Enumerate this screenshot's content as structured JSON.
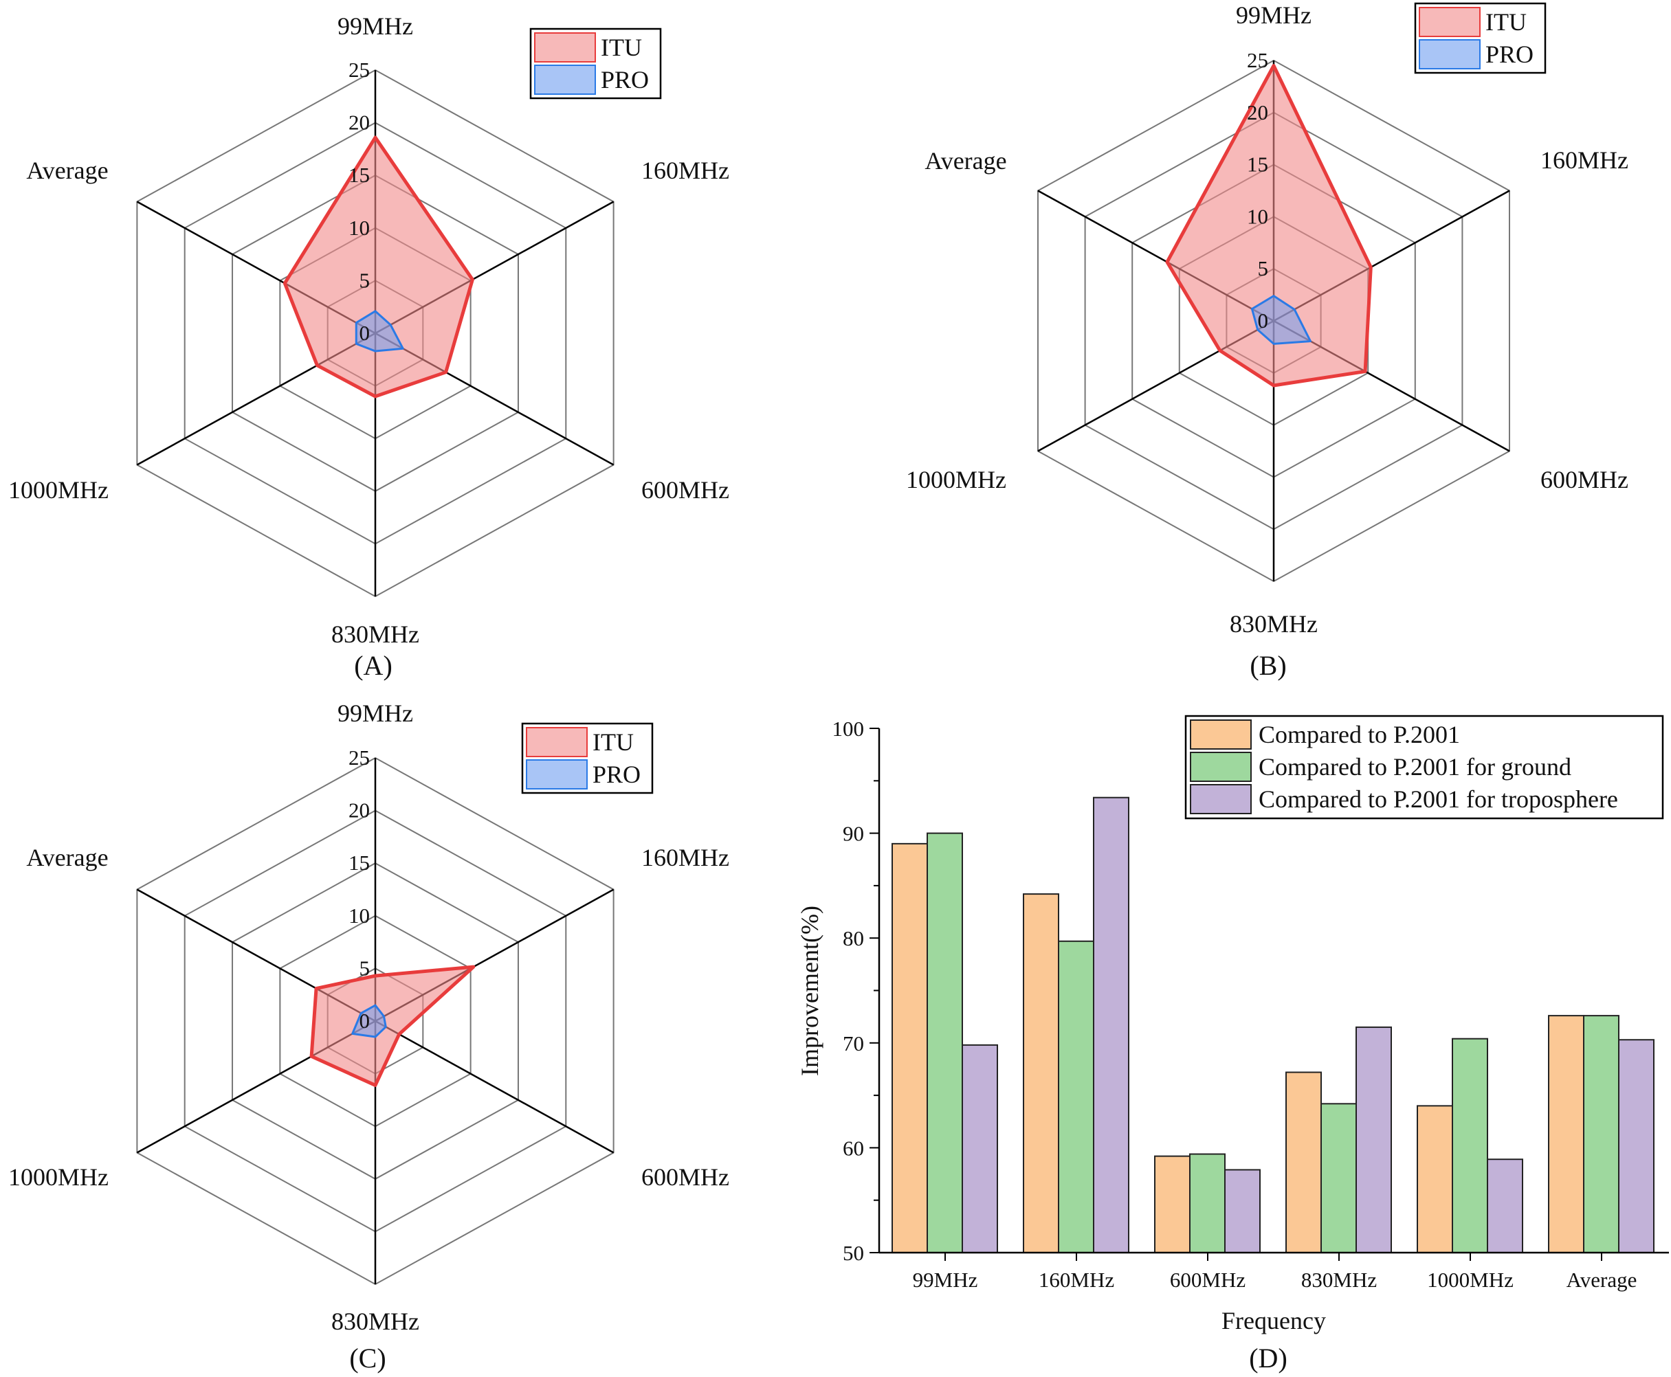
{
  "colors": {
    "itu_fill": "#f28b8b",
    "itu_stroke": "#e83c3c",
    "pro_fill": "#6f9ef0",
    "pro_stroke": "#2a7ae6",
    "bar1": "#fbc895",
    "bar2": "#9ed89e",
    "bar3": "#c2b2d8"
  },
  "chart_data": [
    {
      "type": "radar",
      "panel_label": "(A)",
      "axes": [
        "99MHz",
        "160MHz",
        "600MHz",
        "830MHz",
        "1000MHz",
        "Average"
      ],
      "rlim": [
        0,
        25
      ],
      "ticks": [
        "0",
        "5",
        "10",
        "15",
        "20",
        "25"
      ],
      "series": [
        {
          "name": "ITU",
          "values": [
            18.6,
            10.2,
            7.4,
            6.0,
            6.1,
            9.5
          ]
        },
        {
          "name": "PRO",
          "values": [
            2.1,
            1.6,
            2.9,
            1.7,
            2.0,
            2.0
          ]
        }
      ],
      "legend": "top-right"
    },
    {
      "type": "radar",
      "panel_label": "(B)",
      "axes": [
        "99MHz",
        "160MHz",
        "600MHz",
        "830MHz",
        "1000MHz",
        "Average"
      ],
      "rlim": [
        0,
        25
      ],
      "ticks": [
        "0",
        "5",
        "10",
        "15",
        "20",
        "25"
      ],
      "series": [
        {
          "name": "ITU",
          "values": [
            24.5,
            10.3,
            9.7,
            6.2,
            5.7,
            11.3
          ]
        },
        {
          "name": "PRO",
          "values": [
            2.4,
            2.2,
            3.9,
            2.2,
            1.7,
            2.3
          ]
        }
      ],
      "legend": "top-right"
    },
    {
      "type": "radar",
      "panel_label": "(C)",
      "axes": [
        "99MHz",
        "160MHz",
        "600MHz",
        "830MHz",
        "1000MHz",
        "Average"
      ],
      "rlim": [
        0,
        25
      ],
      "ticks": [
        "0",
        "5",
        "10",
        "15",
        "20",
        "25"
      ],
      "series": [
        {
          "name": "ITU",
          "values": [
            4.3,
            10.3,
            2.5,
            6.1,
            6.7,
            6.2
          ]
        },
        {
          "name": "PRO",
          "values": [
            1.5,
            0.9,
            1.1,
            1.5,
            2.4,
            1.5
          ]
        }
      ],
      "legend": "top-right"
    },
    {
      "type": "bar",
      "panel_label": "(D)",
      "xlabel": "Frequency",
      "ylabel": "Improvement(%)",
      "ylim": [
        50,
        100
      ],
      "yticks": [
        "50",
        "60",
        "70",
        "80",
        "90",
        "100"
      ],
      "categories": [
        "99MHz",
        "160MHz",
        "600MHz",
        "830MHz",
        "1000MHz",
        "Average"
      ],
      "series": [
        {
          "name": "Compared to P.2001",
          "values": [
            89.0,
            84.2,
            59.2,
            67.2,
            64.0,
            72.6
          ]
        },
        {
          "name": "Compared to P.2001 for ground",
          "values": [
            90.0,
            79.7,
            59.4,
            64.2,
            70.4,
            72.6
          ]
        },
        {
          "name": "Compared to P.2001 for troposphere",
          "values": [
            69.8,
            93.4,
            57.9,
            71.5,
            58.9,
            70.3
          ]
        }
      ],
      "legend": "top-right"
    }
  ]
}
